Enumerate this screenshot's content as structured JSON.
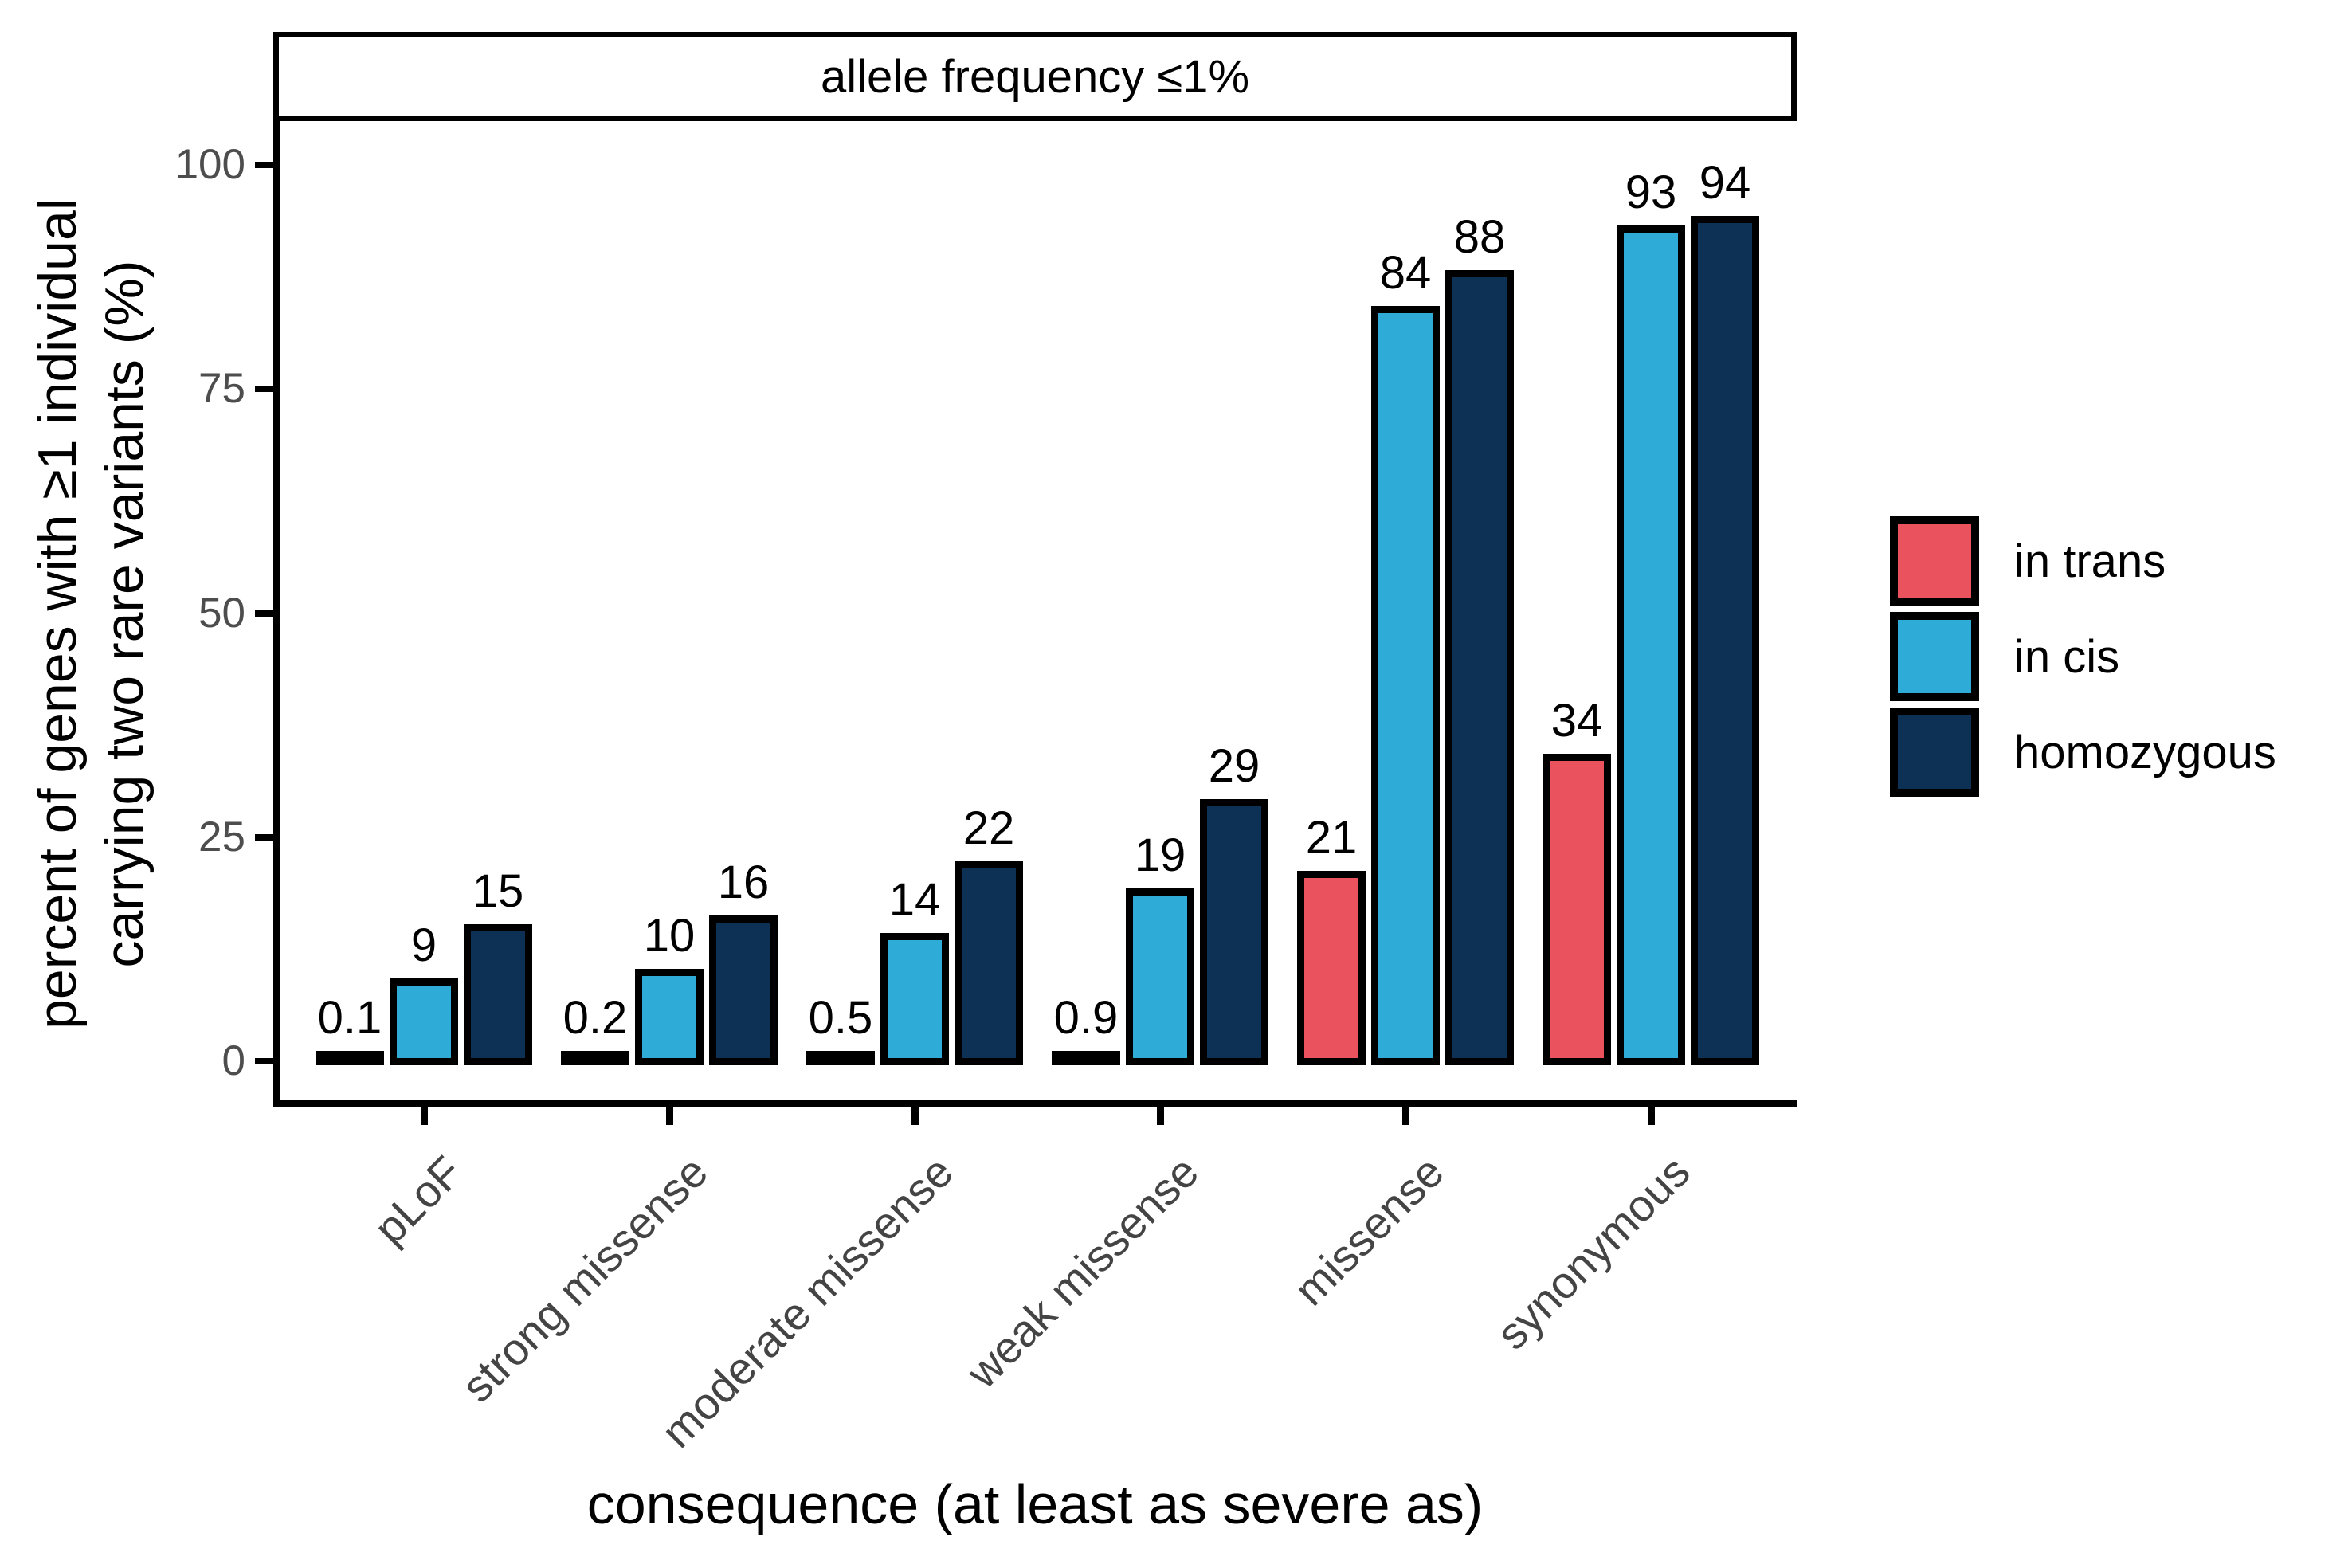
{
  "figure": {
    "facet_title": "allele frequency ≤1%",
    "x_title": "consequence (at least as severe as)",
    "y_title_line1": "percent of genes with ≥1 individual",
    "y_title_line2": "carrying two rare variants (%)"
  },
  "chart_data": {
    "type": "bar",
    "title": "allele frequency ≤1%",
    "xlabel": "consequence (at least as severe as)",
    "ylabel": "percent of genes with ≥1 individual carrying two rare variants (%)",
    "ylim": [
      0,
      100
    ],
    "yticks": [
      0,
      25,
      50,
      75,
      100
    ],
    "grid": false,
    "legend_position": "right",
    "bar_outline_color": "#000000",
    "axis_text_color": "#4D4D4D",
    "categories": [
      "pLoF",
      "strong missense",
      "moderate missense",
      "weak missense",
      "missense",
      "synonymous"
    ],
    "series": [
      {
        "name": "in trans",
        "color": "#EA525D",
        "values": [
          0.1,
          0.2,
          0.5,
          0.9,
          21,
          34
        ],
        "labels": [
          "0.1",
          "0.2",
          "0.5",
          "0.9",
          "21",
          "34"
        ]
      },
      {
        "name": "in cis",
        "color": "#2FABD8",
        "values": [
          9,
          10,
          14,
          19,
          84,
          93
        ],
        "labels": [
          "9",
          "10",
          "14",
          "19",
          "84",
          "93"
        ]
      },
      {
        "name": "homozygous",
        "color": "#0D3055",
        "values": [
          15,
          16,
          22,
          29,
          88,
          94
        ],
        "labels": [
          "15",
          "16",
          "22",
          "29",
          "88",
          "94"
        ]
      }
    ]
  }
}
